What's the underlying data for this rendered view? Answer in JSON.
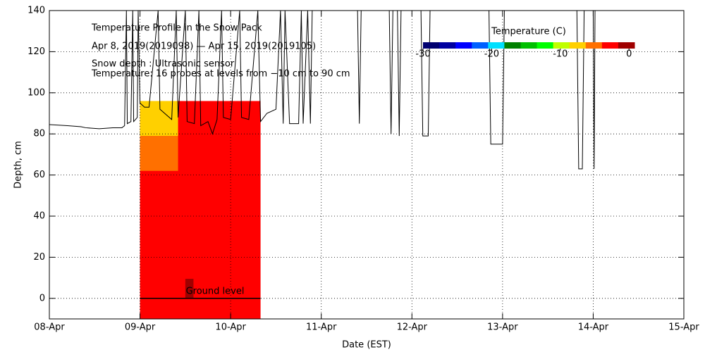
{
  "chart_data": {
    "type": "snow-profile",
    "title": "Temperature Profile in the Snow Pack",
    "subtitle": "Apr  8, 2019(2019098) — Apr 15, 2019(2019105)",
    "annotations": [
      "Snow depth : Ultrasonic sensor",
      "Temperature: 16 probes at levels from −10 cm to 90 cm"
    ],
    "x_label": "Date (EST)",
    "y_label": "Depth, cm",
    "xlim": [
      0,
      7
    ],
    "xticks": [
      {
        "value": 0,
        "label": "08-Apr"
      },
      {
        "value": 1,
        "label": "09-Apr"
      },
      {
        "value": 2,
        "label": "10-Apr"
      },
      {
        "value": 3,
        "label": "11-Apr"
      },
      {
        "value": 4,
        "label": "12-Apr"
      },
      {
        "value": 5,
        "label": "13-Apr"
      },
      {
        "value": 6,
        "label": "14-Apr"
      },
      {
        "value": 7,
        "label": "15-Apr"
      }
    ],
    "ylim": [
      -10,
      140
    ],
    "yticks": [
      0,
      20,
      40,
      60,
      80,
      100,
      120,
      140
    ],
    "grid": true,
    "series": [
      {
        "name": "Snow depth",
        "color": "#000000",
        "x": [
          0,
          0.2,
          0.35,
          0.4,
          0.55,
          0.7,
          0.8,
          0.83,
          0.85,
          0.86,
          0.9,
          0.92,
          0.93,
          0.97,
          0.98,
          1.0,
          1.05,
          1.1,
          1.2,
          1.22,
          1.35,
          1.4,
          1.42,
          1.5,
          1.52,
          1.6,
          1.65,
          1.67,
          1.75,
          1.8,
          1.85,
          1.9,
          1.92,
          2.0,
          2.1,
          2.12,
          2.2,
          2.3,
          2.33,
          2.4,
          2.5,
          2.55,
          2.58,
          2.6,
          2.65,
          2.75,
          2.78,
          2.8,
          2.85,
          2.88,
          2.9,
          3.4,
          3.42,
          3.44,
          3.75,
          3.77,
          3.79,
          3.84,
          3.86,
          3.88,
          4.1,
          4.12,
          4.18,
          4.2,
          4.85,
          4.87,
          5.0,
          5.02,
          5.82,
          5.84,
          5.88,
          5.9,
          6.0,
          6.01,
          6.02,
          7.0
        ],
        "values": [
          84.5,
          84,
          83.5,
          83,
          82.5,
          83,
          83,
          84,
          140,
          85,
          86,
          140,
          86,
          88,
          140,
          95,
          93,
          93,
          140,
          92,
          87,
          140,
          88,
          140,
          86,
          85,
          140,
          84,
          86,
          80,
          87,
          140,
          88,
          87,
          140,
          88,
          87,
          140,
          86,
          90,
          92,
          140,
          85,
          140,
          85,
          85,
          140,
          85,
          140,
          85,
          140,
          140,
          85,
          140,
          140,
          80,
          140,
          140,
          79,
          140,
          140,
          79,
          79,
          140,
          140,
          75,
          75,
          140,
          140,
          63,
          63,
          140,
          140,
          63,
          140,
          140
        ]
      }
    ],
    "profile": [
      {
        "x": [
          1.0,
          2.33
        ],
        "depth": [
          -10,
          96
        ],
        "temperature": -2.5
      },
      {
        "x": [
          1.0,
          1.42
        ],
        "depth": [
          62,
          79
        ],
        "temperature": -5
      },
      {
        "x": [
          1.0,
          1.42
        ],
        "depth": [
          79,
          96
        ],
        "temperature": -7
      },
      {
        "x": [
          1.5,
          1.59
        ],
        "depth": [
          0,
          9.5
        ],
        "temperature": -0.5
      }
    ],
    "ground_line": {
      "label": "Ground level",
      "depth": 0,
      "x": [
        1.0,
        2.33
      ]
    },
    "colorbar": {
      "title": "Temperature (C)",
      "lim": [
        -30,
        0.8
      ],
      "ticks": [
        -30,
        -20,
        -10,
        0
      ],
      "colors": [
        "#000070",
        "#0000a0",
        "#0000ff",
        "#0060ff",
        "#00e0ff",
        "#008000",
        "#00c000",
        "#00ff00",
        "#c0ff00",
        "#ffd000",
        "#ff7000",
        "#ff0000",
        "#a00000"
      ]
    }
  }
}
